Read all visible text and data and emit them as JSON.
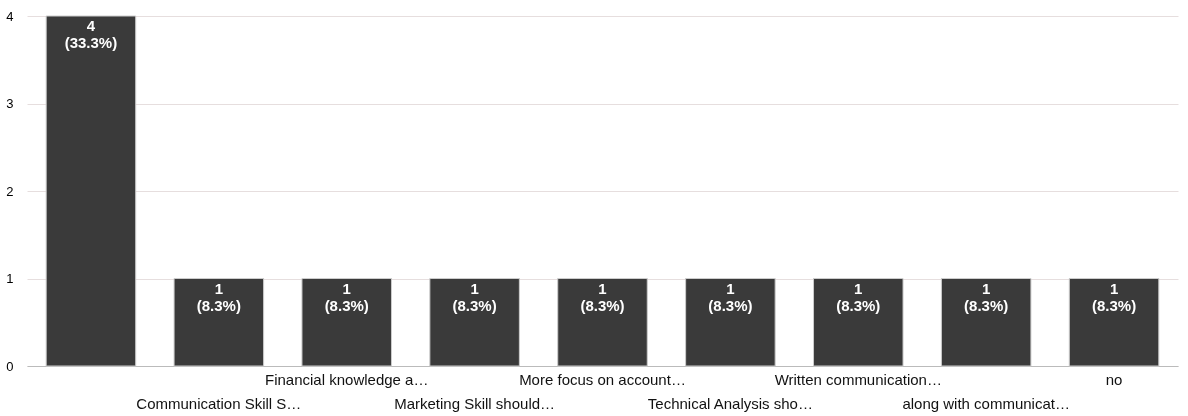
{
  "chart_data": {
    "type": "bar",
    "categories": [
      null,
      "Communication Skill S…",
      "Financial knowledge a…",
      "Marketing Skill should…",
      "More focus on account…",
      "Technical Analysis sho…",
      "Written communication…",
      "along with communicat…",
      "no"
    ],
    "values": [
      4,
      1,
      1,
      1,
      1,
      1,
      1,
      1,
      1
    ],
    "value_labels": [
      "4 (33.3%)",
      "1 (8.3%)",
      "1 (8.3%)",
      "1 (8.3%)",
      "1 (8.3%)",
      "1 (8.3%)",
      "1 (8.3%)",
      "1 (8.3%)",
      "1 (8.3%)"
    ],
    "color": "#3a3a3a",
    "ylim": [
      0,
      4
    ],
    "yticks": [
      0,
      1,
      2,
      3,
      4
    ],
    "grid": "y"
  }
}
